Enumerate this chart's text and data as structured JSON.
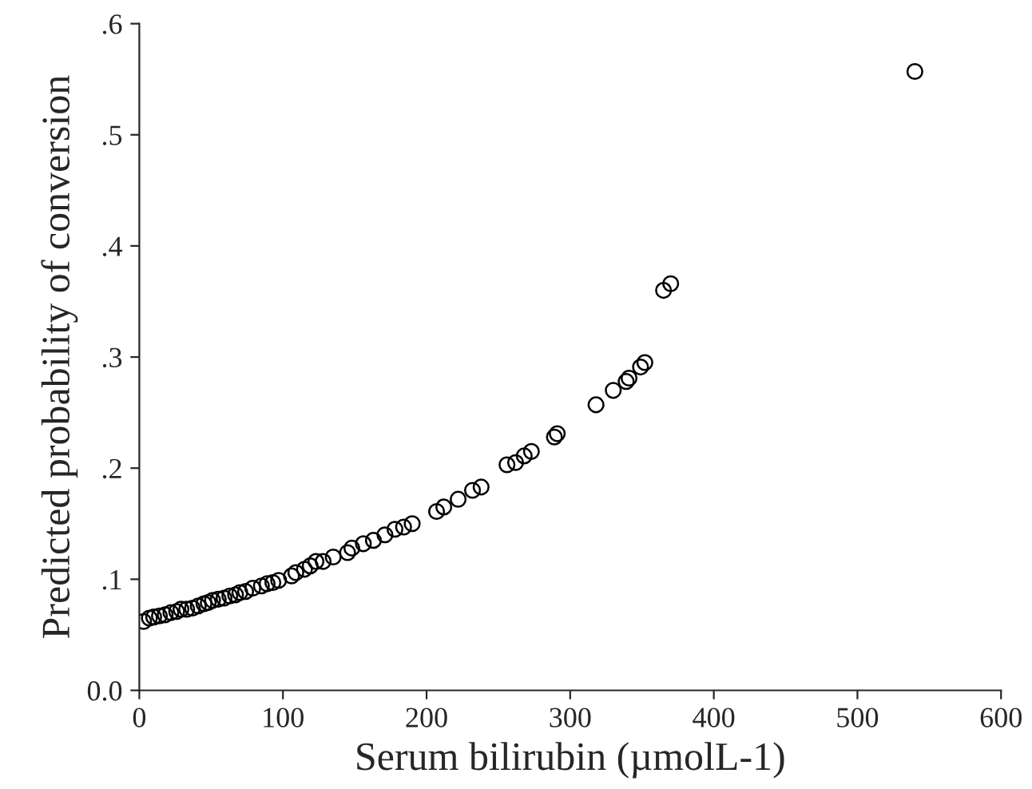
{
  "chart_data": {
    "type": "scatter",
    "xlabel": "Serum bilirubin (µmolL-1)",
    "ylabel": "Predicted probability of conversion",
    "marker": "circle",
    "grid": false,
    "x": [
      3,
      7,
      10,
      14,
      18,
      22,
      26,
      29,
      33,
      37,
      41,
      45,
      48,
      51,
      55,
      59,
      63,
      67,
      70,
      74,
      79,
      85,
      89,
      93,
      97,
      106,
      109,
      115,
      119,
      123,
      128,
      135,
      145,
      148,
      156,
      163,
      171,
      178,
      184,
      190,
      207,
      212,
      222,
      232,
      238,
      256,
      262,
      268,
      273,
      289,
      291,
      318,
      330,
      339,
      341,
      349,
      352,
      365,
      370,
      540
    ],
    "series": [
      {
        "color": "#000000",
        "values": [
          0.062,
          0.065,
          0.066,
          0.067,
          0.068,
          0.07,
          0.071,
          0.073,
          0.073,
          0.074,
          0.076,
          0.078,
          0.079,
          0.081,
          0.082,
          0.083,
          0.085,
          0.086,
          0.088,
          0.089,
          0.092,
          0.094,
          0.096,
          0.097,
          0.099,
          0.103,
          0.106,
          0.109,
          0.112,
          0.116,
          0.116,
          0.12,
          0.124,
          0.128,
          0.132,
          0.135,
          0.14,
          0.145,
          0.147,
          0.15,
          0.161,
          0.165,
          0.172,
          0.18,
          0.183,
          0.203,
          0.205,
          0.211,
          0.215,
          0.228,
          0.231,
          0.257,
          0.27,
          0.278,
          0.281,
          0.291,
          0.295,
          0.36,
          0.366,
          0.557
        ]
      }
    ],
    "xlim": [
      0,
      600
    ],
    "xticks": [
      0,
      100,
      200,
      300,
      400,
      500,
      600
    ],
    "ylim": [
      0,
      0.6
    ],
    "yticks": [
      {
        "value": 0,
        "label": "0.0"
      },
      {
        "value": 0.1,
        "label": ".1"
      },
      {
        "value": 0.2,
        "label": ".2"
      },
      {
        "value": 0.3,
        "label": ".3"
      },
      {
        "value": 0.4,
        "label": ".4"
      },
      {
        "value": 0.5,
        "label": ".5"
      },
      {
        "value": 0.6,
        "label": ".6"
      }
    ]
  }
}
